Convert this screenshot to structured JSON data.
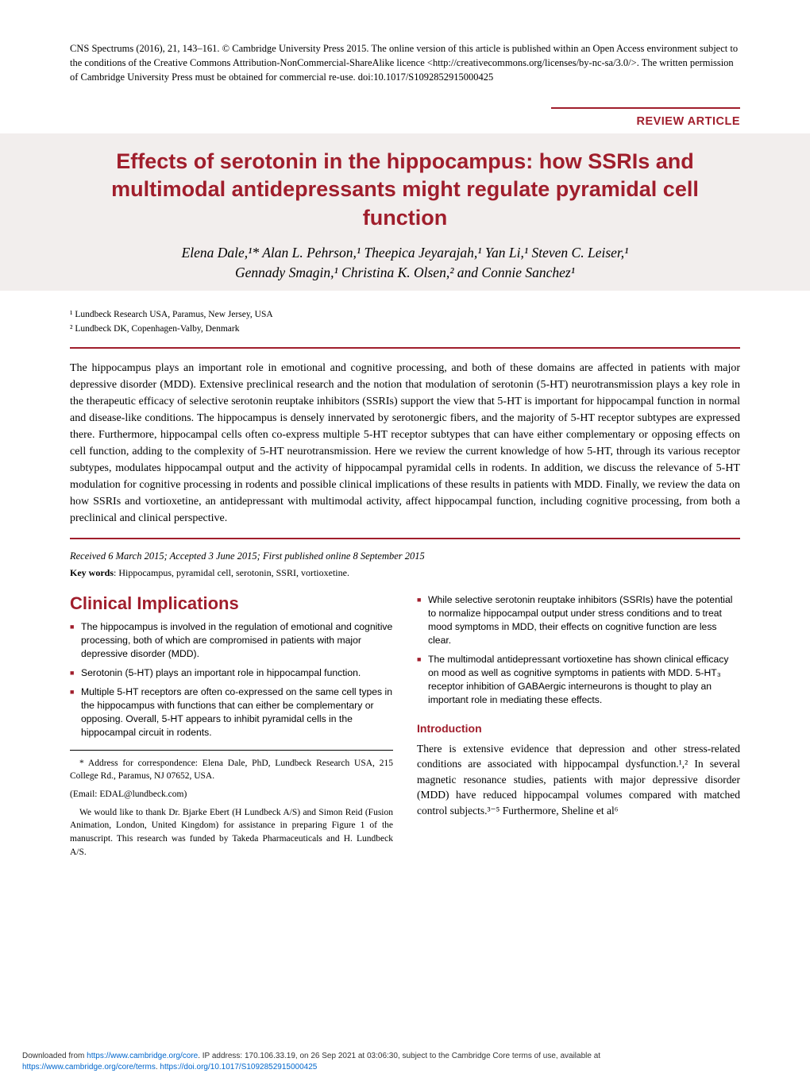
{
  "colors": {
    "accent": "#a01e2c",
    "titleBg": "#f2eeed",
    "link": "#0066cc",
    "text": "#000000",
    "pageBg": "#ffffff"
  },
  "copyright": "CNS Spectrums (2016), 21, 143–161.   © Cambridge University Press 2015. The online version of this article is published within an Open Access environment subject to the conditions of the Creative Commons Attribution-NonCommercial-ShareAlike licence <http://creativecommons.org/licenses/by-nc-sa/3.0/>. The written permission of Cambridge University Press must be obtained for commercial re-use. doi:10.1017/S1092852915000425",
  "reviewLabel": "REVIEW ARTICLE",
  "title": "Effects of serotonin in the hippocampus: how SSRIs and multimodal antidepressants might regulate pyramidal cell function",
  "authorsLine1": "Elena Dale,¹* Alan L. Pehrson,¹ Theepica Jeyarajah,¹ Yan Li,¹ Steven C. Leiser,¹",
  "authorsLine2": "Gennady Smagin,¹ Christina K. Olsen,² and Connie Sanchez¹",
  "affiliations": {
    "a1": "¹ Lundbeck Research USA, Paramus, New Jersey, USA",
    "a2": "² Lundbeck DK, Copenhagen-Valby, Denmark"
  },
  "abstract": "The hippocampus plays an important role in emotional and cognitive processing, and both of these domains are affected in patients with major depressive disorder (MDD). Extensive preclinical research and the notion that modulation of serotonin (5-HT) neurotransmission plays a key role in the therapeutic efficacy of selective serotonin reuptake inhibitors (SSRIs) support the view that 5-HT is important for hippocampal function in normal and disease-like conditions. The hippocampus is densely innervated by serotonergic fibers, and the majority of 5-HT receptor subtypes are expressed there. Furthermore, hippocampal cells often co-express multiple 5-HT receptor subtypes that can have either complementary or opposing effects on cell function, adding to the complexity of 5-HT neurotransmission. Here we review the current knowledge of how 5-HT, through its various receptor subtypes, modulates hippocampal output and the activity of hippocampal pyramidal cells in rodents. In addition, we discuss the relevance of 5-HT modulation for cognitive processing in rodents and possible clinical implications of these results in patients with MDD. Finally, we review the data on how SSRIs and vortioxetine, an antidepressant with multimodal activity, affect hippocampal function, including cognitive processing, from both a preclinical and clinical perspective.",
  "received": "Received 6 March 2015; Accepted 3 June 2015; First published online 8 September 2015",
  "keywordsLabel": "Key words",
  "keywords": ": Hippocampus, pyramidal cell, serotonin, SSRI, vortioxetine.",
  "clinicalHeading": "Clinical Implications",
  "bulletsLeft": [
    "The hippocampus is involved in the regulation of emotional and cognitive processing, both of which are compromised in patients with major depressive disorder (MDD).",
    "Serotonin (5-HT) plays an important role in hippocampal function.",
    "Multiple 5-HT receptors are often co-expressed on the same cell types in the hippocampus with functions that can either be complementary or opposing. Overall, 5-HT appears to inhibit pyramidal cells in the hippocampal circuit in rodents."
  ],
  "bulletsRight": [
    "While selective serotonin reuptake inhibitors (SSRIs) have the potential to normalize hippocampal output under stress conditions and to treat mood symptoms in MDD, their effects on cognitive function are less clear.",
    "The multimodal antidepressant vortioxetine has shown clinical efficacy on mood as well as cognitive symptoms in patients with MDD. 5-HT₃ receptor inhibition of GABAergic interneurons is thought to play an important role in mediating these effects."
  ],
  "introHeading": "Introduction",
  "introText": "There is extensive evidence that depression and other stress-related conditions are associated with hippocampal dysfunction.¹,² In several magnetic resonance studies, patients with major depressive disorder (MDD) have reduced hippocampal volumes compared with matched control subjects.³⁻⁵ Furthermore, Sheline et al⁶",
  "footnote": {
    "p1": "* Address for correspondence: Elena Dale, PhD, Lundbeck Research USA, 215 College Rd., Paramus, NJ 07652, USA.",
    "p2": "(Email: EDAL@lundbeck.com)",
    "p3": "We would like to thank Dr. Bjarke Ebert (H Lundbeck A/S) and Simon Reid (Fusion Animation, London, United Kingdom) for assistance in preparing Figure 1 of the manuscript. This research was funded by Takeda Pharmaceuticals and H. Lundbeck A/S."
  },
  "footer": {
    "line1a": "Downloaded from ",
    "link1": "https://www.cambridge.org/core",
    "line1b": ". IP address: 170.106.33.19, on 26 Sep 2021 at 03:06:30, subject to the Cambridge Core terms of use, available at",
    "link2": "https://www.cambridge.org/core/terms",
    "mid": ". ",
    "link3": "https://doi.org/10.1017/S1092852915000425"
  }
}
